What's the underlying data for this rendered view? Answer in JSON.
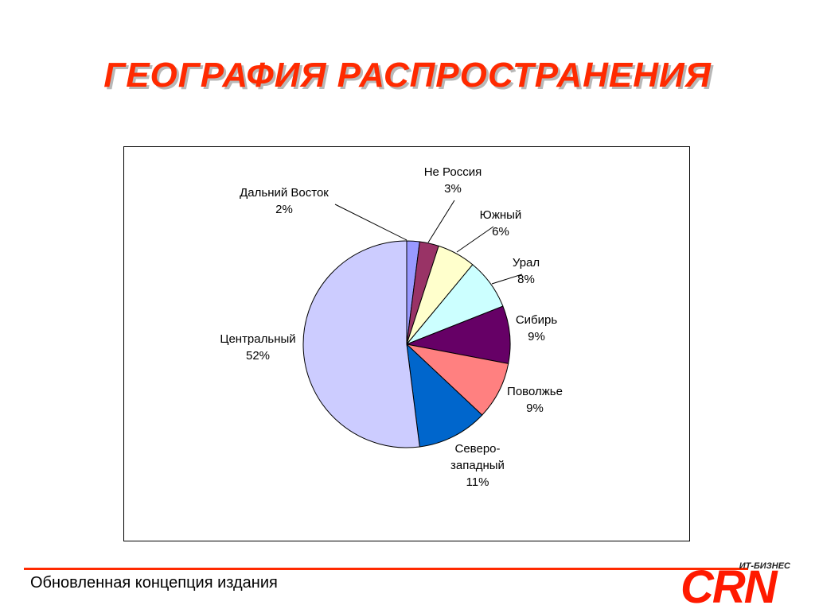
{
  "title": "ГЕОГРАФИЯ РАСПРОСТРАНЕНИЯ",
  "footer": {
    "text": "Обновленная концепция издания",
    "logo_small": "ИТ-БИЗНЕС",
    "logo_big": "CRN"
  },
  "colors": {
    "accent": "#ff2a00",
    "logo": "#ff1a00"
  },
  "chart_data": {
    "type": "pie",
    "start_angle_deg": 0,
    "direction": "clockwise",
    "slices": [
      {
        "label": "Дальний Восток",
        "percent_label": "2%",
        "value": 2,
        "color": "#9999ff"
      },
      {
        "label": "Не Россия",
        "percent_label": "3%",
        "value": 3,
        "color": "#993366"
      },
      {
        "label": "Южный",
        "percent_label": "6%",
        "value": 6,
        "color": "#ffffcc"
      },
      {
        "label": "Урал",
        "percent_label": "8%",
        "value": 8,
        "color": "#ccffff"
      },
      {
        "label": "Сибирь",
        "percent_label": "9%",
        "value": 9,
        "color": "#660066"
      },
      {
        "label": "Поволжье",
        "percent_label": "9%",
        "value": 9,
        "color": "#ff8080"
      },
      {
        "label": "Северо-западный",
        "label_lines": [
          "Северо-",
          "западный"
        ],
        "percent_label": "11%",
        "value": 11,
        "color": "#0066cc"
      },
      {
        "label": "Центральный",
        "percent_label": "52%",
        "value": 52,
        "color": "#ccccff"
      }
    ]
  }
}
